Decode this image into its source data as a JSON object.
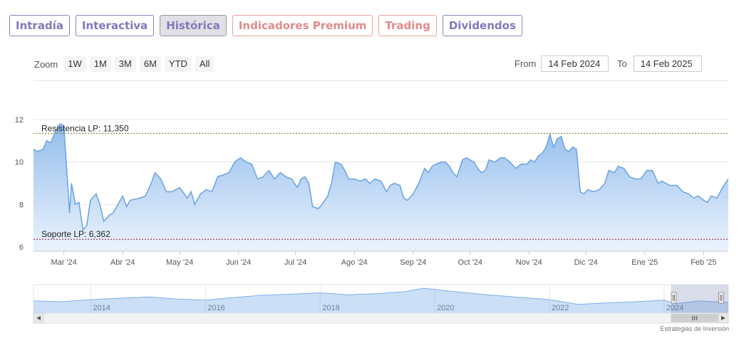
{
  "tabs": [
    {
      "label": "Intradía",
      "state": "normal"
    },
    {
      "label": "Interactiva",
      "state": "normal"
    },
    {
      "label": "Histórica",
      "state": "active"
    },
    {
      "label": "Indicadores Premium",
      "state": "premium"
    },
    {
      "label": "Trading",
      "state": "premium"
    },
    {
      "label": "Dividendos",
      "state": "normal"
    }
  ],
  "toolbar": {
    "zoom_label": "Zoom",
    "zoom_buttons": [
      "1W",
      "1M",
      "3M",
      "6M",
      "YTD",
      "All"
    ],
    "from_label": "From",
    "from_value": "14 Feb 2024",
    "to_label": "To",
    "to_value": "14 Feb 2025"
  },
  "chart_data": {
    "type": "area",
    "title": "",
    "xlabel": "",
    "ylabel": "",
    "x_range": [
      "2024-02-14",
      "2025-02-14"
    ],
    "ylim": [
      6,
      12
    ],
    "y_ticks": [
      6,
      8,
      10,
      12
    ],
    "x_ticks": [
      {
        "date": "2024-03-01",
        "label": "Mar '24"
      },
      {
        "date": "2024-04-01",
        "label": "Abr '24"
      },
      {
        "date": "2024-05-01",
        "label": "May '24"
      },
      {
        "date": "2024-06-01",
        "label": "Jun '24"
      },
      {
        "date": "2024-07-01",
        "label": "Jul '24"
      },
      {
        "date": "2024-08-01",
        "label": "Ago '24"
      },
      {
        "date": "2024-09-01",
        "label": "Sep '24"
      },
      {
        "date": "2024-10-01",
        "label": "Oct '24"
      },
      {
        "date": "2024-11-01",
        "label": "Nov '24"
      },
      {
        "date": "2024-12-01",
        "label": "Dic '24"
      },
      {
        "date": "2025-01-01",
        "label": "Ene '25"
      },
      {
        "date": "2025-02-01",
        "label": "Feb '25"
      }
    ],
    "grid": true,
    "series": [
      {
        "points": [
          [
            "2024-02-14",
            10.6
          ],
          [
            "2024-02-16",
            10.5
          ],
          [
            "2024-02-19",
            10.6
          ],
          [
            "2024-02-21",
            11.0
          ],
          [
            "2024-02-23",
            10.9
          ],
          [
            "2024-02-26",
            11.5
          ],
          [
            "2024-02-28",
            11.8
          ],
          [
            "2024-03-01",
            11.7
          ],
          [
            "2024-03-04",
            7.6
          ],
          [
            "2024-03-05",
            9.0
          ],
          [
            "2024-03-07",
            8.0
          ],
          [
            "2024-03-09",
            8.1
          ],
          [
            "2024-03-11",
            6.8
          ],
          [
            "2024-03-13",
            7.0
          ],
          [
            "2024-03-15",
            8.2
          ],
          [
            "2024-03-18",
            8.5
          ],
          [
            "2024-03-20",
            8.0
          ],
          [
            "2024-03-22",
            7.2
          ],
          [
            "2024-03-25",
            7.5
          ],
          [
            "2024-03-27",
            7.6
          ],
          [
            "2024-04-01",
            8.4
          ],
          [
            "2024-04-03",
            7.9
          ],
          [
            "2024-04-05",
            8.2
          ],
          [
            "2024-04-10",
            8.3
          ],
          [
            "2024-04-13",
            8.4
          ],
          [
            "2024-04-16",
            9.0
          ],
          [
            "2024-04-18",
            9.5
          ],
          [
            "2024-04-21",
            9.2
          ],
          [
            "2024-04-24",
            8.6
          ],
          [
            "2024-04-27",
            8.6
          ],
          [
            "2024-05-01",
            8.8
          ],
          [
            "2024-05-05",
            8.3
          ],
          [
            "2024-05-07",
            8.6
          ],
          [
            "2024-05-09",
            8.0
          ],
          [
            "2024-05-12",
            8.5
          ],
          [
            "2024-05-15",
            8.7
          ],
          [
            "2024-05-18",
            8.6
          ],
          [
            "2024-05-21",
            9.3
          ],
          [
            "2024-05-24",
            9.4
          ],
          [
            "2024-05-27",
            9.5
          ],
          [
            "2024-05-30",
            10.0
          ],
          [
            "2024-06-02",
            10.2
          ],
          [
            "2024-06-05",
            10.0
          ],
          [
            "2024-06-08",
            9.9
          ],
          [
            "2024-06-11",
            9.2
          ],
          [
            "2024-06-14",
            9.3
          ],
          [
            "2024-06-17",
            9.6
          ],
          [
            "2024-06-20",
            9.2
          ],
          [
            "2024-06-23",
            9.5
          ],
          [
            "2024-06-26",
            9.3
          ],
          [
            "2024-06-29",
            9.2
          ],
          [
            "2024-07-02",
            8.8
          ],
          [
            "2024-07-04",
            9.2
          ],
          [
            "2024-07-06",
            9.3
          ],
          [
            "2024-07-08",
            9.0
          ],
          [
            "2024-07-10",
            7.9
          ],
          [
            "2024-07-13",
            7.8
          ],
          [
            "2024-07-15",
            8.0
          ],
          [
            "2024-07-18",
            8.4
          ],
          [
            "2024-07-20",
            9.0
          ],
          [
            "2024-07-22",
            10.0
          ],
          [
            "2024-07-25",
            9.9
          ],
          [
            "2024-07-27",
            9.6
          ],
          [
            "2024-07-29",
            9.2
          ],
          [
            "2024-08-01",
            9.2
          ],
          [
            "2024-08-04",
            9.1
          ],
          [
            "2024-08-07",
            9.2
          ],
          [
            "2024-08-09",
            9.0
          ],
          [
            "2024-08-12",
            9.2
          ],
          [
            "2024-08-15",
            9.1
          ],
          [
            "2024-08-18",
            8.6
          ],
          [
            "2024-08-20",
            8.9
          ],
          [
            "2024-08-22",
            9.0
          ],
          [
            "2024-08-25",
            8.9
          ],
          [
            "2024-08-27",
            8.3
          ],
          [
            "2024-08-29",
            8.2
          ],
          [
            "2024-09-01",
            8.5
          ],
          [
            "2024-09-04",
            9.0
          ],
          [
            "2024-09-07",
            9.7
          ],
          [
            "2024-09-09",
            9.5
          ],
          [
            "2024-09-11",
            9.8
          ],
          [
            "2024-09-13",
            9.9
          ],
          [
            "2024-09-16",
            10.0
          ],
          [
            "2024-09-18",
            10.0
          ],
          [
            "2024-09-20",
            9.8
          ],
          [
            "2024-09-22",
            9.5
          ],
          [
            "2024-09-24",
            9.3
          ],
          [
            "2024-09-27",
            10.1
          ],
          [
            "2024-09-29",
            10.2
          ],
          [
            "2024-10-01",
            10.1
          ],
          [
            "2024-10-03",
            10.0
          ],
          [
            "2024-10-05",
            9.7
          ],
          [
            "2024-10-07",
            9.5
          ],
          [
            "2024-10-09",
            9.6
          ],
          [
            "2024-10-11",
            10.1
          ],
          [
            "2024-10-14",
            10.0
          ],
          [
            "2024-10-17",
            10.2
          ],
          [
            "2024-10-19",
            10.2
          ],
          [
            "2024-10-22",
            10.0
          ],
          [
            "2024-10-25",
            9.7
          ],
          [
            "2024-10-28",
            9.9
          ],
          [
            "2024-10-31",
            9.9
          ],
          [
            "2024-11-02",
            10.1
          ],
          [
            "2024-11-04",
            10.0
          ],
          [
            "2024-11-06",
            10.3
          ],
          [
            "2024-11-08",
            10.4
          ],
          [
            "2024-11-10",
            10.7
          ],
          [
            "2024-11-12",
            11.3
          ],
          [
            "2024-11-14",
            10.7
          ],
          [
            "2024-11-16",
            11.1
          ],
          [
            "2024-11-18",
            11.2
          ],
          [
            "2024-11-20",
            10.6
          ],
          [
            "2024-11-22",
            10.5
          ],
          [
            "2024-11-24",
            10.7
          ],
          [
            "2024-11-26",
            10.6
          ],
          [
            "2024-11-28",
            8.6
          ],
          [
            "2024-11-30",
            8.5
          ],
          [
            "2024-12-02",
            8.7
          ],
          [
            "2024-12-05",
            8.6
          ],
          [
            "2024-12-08",
            8.7
          ],
          [
            "2024-12-11",
            9.0
          ],
          [
            "2024-12-13",
            9.6
          ],
          [
            "2024-12-16",
            9.5
          ],
          [
            "2024-12-18",
            9.8
          ],
          [
            "2024-12-21",
            9.7
          ],
          [
            "2024-12-24",
            9.3
          ],
          [
            "2024-12-27",
            9.2
          ],
          [
            "2024-12-30",
            9.2
          ],
          [
            "2025-01-02",
            9.6
          ],
          [
            "2025-01-05",
            9.6
          ],
          [
            "2025-01-08",
            9.0
          ],
          [
            "2025-01-10",
            9.1
          ],
          [
            "2025-01-14",
            8.9
          ],
          [
            "2025-01-18",
            8.9
          ],
          [
            "2025-01-21",
            8.6
          ],
          [
            "2025-01-24",
            8.5
          ],
          [
            "2025-01-27",
            8.3
          ],
          [
            "2025-01-29",
            8.4
          ],
          [
            "2025-02-01",
            8.2
          ],
          [
            "2025-02-03",
            8.1
          ],
          [
            "2025-02-05",
            8.4
          ],
          [
            "2025-02-08",
            8.3
          ],
          [
            "2025-02-11",
            8.8
          ],
          [
            "2025-02-14",
            9.2
          ]
        ]
      }
    ],
    "reference_lines": [
      {
        "label": "Resistencia LP: 11,350",
        "value": 11.35,
        "color": "#6a7a24"
      },
      {
        "label": "Soporte LP: 6,362",
        "value": 6.362,
        "color": "#8a2030"
      }
    ],
    "colors": {
      "line": "#6fa6e0",
      "fill_top": "#8cb9ec",
      "fill_bottom": "#e8f1fc"
    },
    "navigator": {
      "year_labels": [
        "2014",
        "2016",
        "2018",
        "2020",
        "2022",
        "2024"
      ],
      "first_year": 2013,
      "last_year": 2025.12,
      "selected_range": [
        2024.12,
        2025.12
      ],
      "series": [
        [
          2013.0,
          0.45
        ],
        [
          2013.5,
          0.42
        ],
        [
          2014.0,
          0.5
        ],
        [
          2014.5,
          0.55
        ],
        [
          2015.0,
          0.6
        ],
        [
          2015.5,
          0.52
        ],
        [
          2016.0,
          0.48
        ],
        [
          2016.5,
          0.58
        ],
        [
          2017.0,
          0.66
        ],
        [
          2017.5,
          0.7
        ],
        [
          2018.0,
          0.75
        ],
        [
          2018.5,
          0.68
        ],
        [
          2019.0,
          0.72
        ],
        [
          2019.5,
          0.8
        ],
        [
          2019.8,
          0.92
        ],
        [
          2020.0,
          0.88
        ],
        [
          2020.3,
          0.8
        ],
        [
          2020.7,
          0.72
        ],
        [
          2021.0,
          0.66
        ],
        [
          2021.5,
          0.58
        ],
        [
          2022.0,
          0.5
        ],
        [
          2022.5,
          0.32
        ],
        [
          2023.0,
          0.38
        ],
        [
          2023.5,
          0.42
        ],
        [
          2024.0,
          0.48
        ],
        [
          2024.2,
          0.35
        ],
        [
          2024.6,
          0.45
        ],
        [
          2025.12,
          0.4
        ]
      ]
    }
  },
  "credit": "Estrategias de Inversión"
}
